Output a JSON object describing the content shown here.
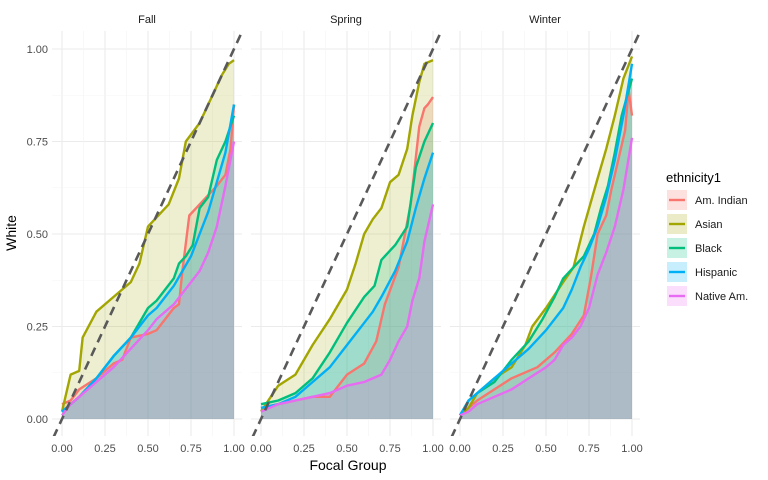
{
  "chart_data": {
    "type": "line",
    "facet_by": "term",
    "panels": [
      {
        "label": "Fall"
      },
      {
        "label": "Spring"
      },
      {
        "label": "Winter"
      }
    ],
    "xlabel": "Focal Group",
    "ylabel": "White",
    "xlim": [
      0,
      1
    ],
    "ylim": [
      0,
      1
    ],
    "x_ticks": [
      "0.00",
      "0.25",
      "0.50",
      "0.75",
      "1.00"
    ],
    "y_ticks": [
      "0.00",
      "0.25",
      "0.50",
      "0.75",
      "1.00"
    ],
    "reference_line": {
      "style": "dashed",
      "slope": 1,
      "intercept": 0,
      "color": "#595959"
    },
    "grid": true,
    "legend": {
      "title": "ethnicity1",
      "position": "right",
      "items": [
        {
          "name": "Am. Indian",
          "color": "#F8766D"
        },
        {
          "name": "Asian",
          "color": "#A3A500"
        },
        {
          "name": "Black",
          "color": "#00BF7D"
        },
        {
          "name": "Hispanic",
          "color": "#00B0F6"
        },
        {
          "name": "Native Am.",
          "color": "#E76BF3"
        }
      ]
    },
    "series": [
      {
        "name": "Am. Indian",
        "facets": {
          "Fall": [
            [
              0,
              0.04
            ],
            [
              0.05,
              0.05
            ],
            [
              0.1,
              0.08
            ],
            [
              0.2,
              0.11
            ],
            [
              0.3,
              0.15
            ],
            [
              0.35,
              0.16
            ],
            [
              0.4,
              0.22
            ],
            [
              0.5,
              0.23
            ],
            [
              0.55,
              0.24
            ],
            [
              0.6,
              0.27
            ],
            [
              0.65,
              0.3
            ],
            [
              0.68,
              0.31
            ],
            [
              0.7,
              0.4
            ],
            [
              0.74,
              0.55
            ],
            [
              0.8,
              0.58
            ],
            [
              0.86,
              0.61
            ],
            [
              0.9,
              0.63
            ],
            [
              0.95,
              0.66
            ],
            [
              0.98,
              0.73
            ],
            [
              1,
              0.85
            ]
          ],
          "Spring": [
            [
              0,
              0.03
            ],
            [
              0.1,
              0.04
            ],
            [
              0.2,
              0.05
            ],
            [
              0.3,
              0.06
            ],
            [
              0.4,
              0.06
            ],
            [
              0.5,
              0.12
            ],
            [
              0.6,
              0.15
            ],
            [
              0.67,
              0.21
            ],
            [
              0.72,
              0.31
            ],
            [
              0.8,
              0.41
            ],
            [
              0.87,
              0.58
            ],
            [
              0.92,
              0.79
            ],
            [
              0.95,
              0.84
            ],
            [
              0.97,
              0.85
            ],
            [
              1,
              0.87
            ]
          ],
          "Winter": [
            [
              0,
              0.01
            ],
            [
              0.05,
              0.03
            ],
            [
              0.1,
              0.05
            ],
            [
              0.2,
              0.08
            ],
            [
              0.3,
              0.11
            ],
            [
              0.45,
              0.14
            ],
            [
              0.55,
              0.18
            ],
            [
              0.65,
              0.23
            ],
            [
              0.72,
              0.28
            ],
            [
              0.76,
              0.38
            ],
            [
              0.8,
              0.5
            ],
            [
              0.85,
              0.55
            ],
            [
              0.88,
              0.62
            ],
            [
              0.92,
              0.7
            ],
            [
              0.96,
              0.78
            ],
            [
              0.98,
              0.89
            ],
            [
              1,
              0.82
            ]
          ]
        }
      },
      {
        "name": "Asian",
        "facets": {
          "Fall": [
            [
              0,
              0.02
            ],
            [
              0.05,
              0.12
            ],
            [
              0.1,
              0.13
            ],
            [
              0.12,
              0.22
            ],
            [
              0.2,
              0.29
            ],
            [
              0.3,
              0.33
            ],
            [
              0.35,
              0.35
            ],
            [
              0.4,
              0.37
            ],
            [
              0.45,
              0.42
            ],
            [
              0.5,
              0.52
            ],
            [
              0.58,
              0.56
            ],
            [
              0.62,
              0.58
            ],
            [
              0.68,
              0.65
            ],
            [
              0.72,
              0.75
            ],
            [
              0.8,
              0.8
            ],
            [
              0.87,
              0.87
            ],
            [
              0.93,
              0.93
            ],
            [
              0.97,
              0.96
            ],
            [
              1,
              0.97
            ]
          ],
          "Spring": [
            [
              0,
              0.02
            ],
            [
              0.1,
              0.09
            ],
            [
              0.2,
              0.12
            ],
            [
              0.3,
              0.2
            ],
            [
              0.4,
              0.27
            ],
            [
              0.5,
              0.35
            ],
            [
              0.55,
              0.42
            ],
            [
              0.6,
              0.5
            ],
            [
              0.65,
              0.54
            ],
            [
              0.7,
              0.57
            ],
            [
              0.75,
              0.64
            ],
            [
              0.8,
              0.66
            ],
            [
              0.85,
              0.73
            ],
            [
              0.88,
              0.82
            ],
            [
              0.92,
              0.91
            ],
            [
              0.95,
              0.96
            ],
            [
              1,
              0.97
            ]
          ],
          "Winter": [
            [
              0,
              0.01
            ],
            [
              0.05,
              0.03
            ],
            [
              0.1,
              0.07
            ],
            [
              0.2,
              0.11
            ],
            [
              0.3,
              0.14
            ],
            [
              0.38,
              0.2
            ],
            [
              0.42,
              0.25
            ],
            [
              0.5,
              0.3
            ],
            [
              0.6,
              0.37
            ],
            [
              0.66,
              0.41
            ],
            [
              0.72,
              0.52
            ],
            [
              0.8,
              0.65
            ],
            [
              0.85,
              0.73
            ],
            [
              0.9,
              0.82
            ],
            [
              0.95,
              0.92
            ],
            [
              1,
              0.98
            ]
          ]
        }
      },
      {
        "name": "Black",
        "facets": {
          "Fall": [
            [
              0,
              0.02
            ],
            [
              0.1,
              0.06
            ],
            [
              0.2,
              0.11
            ],
            [
              0.3,
              0.17
            ],
            [
              0.4,
              0.22
            ],
            [
              0.5,
              0.3
            ],
            [
              0.55,
              0.32
            ],
            [
              0.6,
              0.35
            ],
            [
              0.65,
              0.38
            ],
            [
              0.68,
              0.42
            ],
            [
              0.72,
              0.44
            ],
            [
              0.76,
              0.47
            ],
            [
              0.8,
              0.57
            ],
            [
              0.85,
              0.6
            ],
            [
              0.9,
              0.7
            ],
            [
              0.95,
              0.75
            ],
            [
              1,
              0.82
            ]
          ],
          "Spring": [
            [
              0,
              0.04
            ],
            [
              0.1,
              0.05
            ],
            [
              0.2,
              0.07
            ],
            [
              0.3,
              0.11
            ],
            [
              0.4,
              0.18
            ],
            [
              0.5,
              0.26
            ],
            [
              0.6,
              0.33
            ],
            [
              0.66,
              0.36
            ],
            [
              0.7,
              0.43
            ],
            [
              0.78,
              0.47
            ],
            [
              0.85,
              0.52
            ],
            [
              0.9,
              0.68
            ],
            [
              0.95,
              0.75
            ],
            [
              1,
              0.8
            ]
          ],
          "Winter": [
            [
              0,
              0.01
            ],
            [
              0.05,
              0.05
            ],
            [
              0.1,
              0.07
            ],
            [
              0.2,
              0.1
            ],
            [
              0.3,
              0.16
            ],
            [
              0.4,
              0.21
            ],
            [
              0.48,
              0.27
            ],
            [
              0.55,
              0.33
            ],
            [
              0.6,
              0.38
            ],
            [
              0.66,
              0.41
            ],
            [
              0.72,
              0.44
            ],
            [
              0.78,
              0.5
            ],
            [
              0.82,
              0.57
            ],
            [
              0.86,
              0.63
            ],
            [
              0.9,
              0.72
            ],
            [
              0.94,
              0.82
            ],
            [
              1,
              0.92
            ]
          ]
        }
      },
      {
        "name": "Hispanic",
        "facets": {
          "Fall": [
            [
              0,
              0.02
            ],
            [
              0.1,
              0.06
            ],
            [
              0.2,
              0.11
            ],
            [
              0.3,
              0.17
            ],
            [
              0.4,
              0.22
            ],
            [
              0.5,
              0.28
            ],
            [
              0.55,
              0.3
            ],
            [
              0.6,
              0.33
            ],
            [
              0.65,
              0.36
            ],
            [
              0.7,
              0.4
            ],
            [
              0.75,
              0.44
            ],
            [
              0.8,
              0.5
            ],
            [
              0.85,
              0.56
            ],
            [
              0.9,
              0.64
            ],
            [
              0.95,
              0.72
            ],
            [
              1,
              0.85
            ]
          ],
          "Spring": [
            [
              0,
              0.03
            ],
            [
              0.1,
              0.04
            ],
            [
              0.2,
              0.06
            ],
            [
              0.3,
              0.1
            ],
            [
              0.4,
              0.14
            ],
            [
              0.5,
              0.2
            ],
            [
              0.6,
              0.26
            ],
            [
              0.65,
              0.29
            ],
            [
              0.7,
              0.33
            ],
            [
              0.78,
              0.4
            ],
            [
              0.85,
              0.48
            ],
            [
              0.9,
              0.57
            ],
            [
              0.95,
              0.65
            ],
            [
              1,
              0.72
            ]
          ],
          "Winter": [
            [
              0,
              0.01
            ],
            [
              0.05,
              0.05
            ],
            [
              0.1,
              0.07
            ],
            [
              0.2,
              0.11
            ],
            [
              0.3,
              0.15
            ],
            [
              0.4,
              0.19
            ],
            [
              0.5,
              0.24
            ],
            [
              0.6,
              0.3
            ],
            [
              0.65,
              0.35
            ],
            [
              0.7,
              0.41
            ],
            [
              0.75,
              0.46
            ],
            [
              0.8,
              0.52
            ],
            [
              0.85,
              0.6
            ],
            [
              0.9,
              0.7
            ],
            [
              0.95,
              0.82
            ],
            [
              1,
              0.96
            ]
          ]
        }
      },
      {
        "name": "Native Am.",
        "facets": {
          "Fall": [
            [
              0,
              0.01
            ],
            [
              0.05,
              0.04
            ],
            [
              0.1,
              0.06
            ],
            [
              0.2,
              0.1
            ],
            [
              0.3,
              0.14
            ],
            [
              0.4,
              0.19
            ],
            [
              0.5,
              0.24
            ],
            [
              0.55,
              0.27
            ],
            [
              0.6,
              0.29
            ],
            [
              0.65,
              0.31
            ],
            [
              0.7,
              0.34
            ],
            [
              0.75,
              0.37
            ],
            [
              0.8,
              0.4
            ],
            [
              0.85,
              0.45
            ],
            [
              0.9,
              0.52
            ],
            [
              0.95,
              0.63
            ],
            [
              1,
              0.75
            ]
          ],
          "Spring": [
            [
              0,
              0.02
            ],
            [
              0.1,
              0.04
            ],
            [
              0.2,
              0.05
            ],
            [
              0.3,
              0.06
            ],
            [
              0.4,
              0.07
            ],
            [
              0.5,
              0.09
            ],
            [
              0.6,
              0.1
            ],
            [
              0.7,
              0.12
            ],
            [
              0.75,
              0.16
            ],
            [
              0.8,
              0.21
            ],
            [
              0.85,
              0.25
            ],
            [
              0.88,
              0.32
            ],
            [
              0.92,
              0.38
            ],
            [
              0.95,
              0.48
            ],
            [
              1,
              0.58
            ]
          ],
          "Winter": [
            [
              0,
              0.01
            ],
            [
              0.05,
              0.02
            ],
            [
              0.1,
              0.04
            ],
            [
              0.2,
              0.06
            ],
            [
              0.3,
              0.08
            ],
            [
              0.4,
              0.11
            ],
            [
              0.5,
              0.14
            ],
            [
              0.55,
              0.16
            ],
            [
              0.6,
              0.2
            ],
            [
              0.65,
              0.22
            ],
            [
              0.7,
              0.25
            ],
            [
              0.75,
              0.3
            ],
            [
              0.8,
              0.39
            ],
            [
              0.85,
              0.45
            ],
            [
              0.9,
              0.52
            ],
            [
              0.95,
              0.62
            ],
            [
              1,
              0.76
            ]
          ]
        }
      }
    ]
  }
}
